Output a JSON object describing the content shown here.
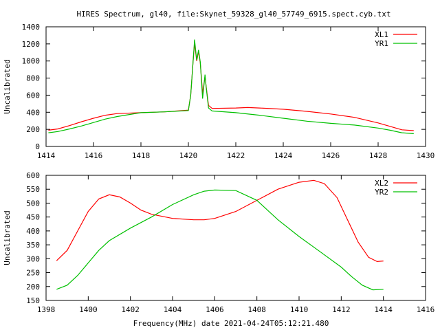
{
  "chart_data": [
    {
      "type": "line",
      "title": "HIRES Spectrum, gl40, file:Skynet_59328_gl40_57749_6915.spect.cyb.txt",
      "xlabel": "",
      "ylabel": "Uncalibrated",
      "xlim": [
        1414,
        1430
      ],
      "ylim": [
        0,
        1400
      ],
      "xticks": [
        1414,
        1416,
        1418,
        1420,
        1422,
        1424,
        1426,
        1428,
        1430
      ],
      "yticks": [
        0,
        200,
        400,
        600,
        800,
        1000,
        1200,
        1400
      ],
      "legend": "top-right",
      "series": [
        {
          "name": "XL1",
          "color": "#ff0000",
          "x": [
            1414.1,
            1414.5,
            1415,
            1415.5,
            1416,
            1416.5,
            1417,
            1418,
            1419,
            1420,
            1420.1,
            1420.2,
            1420.26,
            1420.35,
            1420.43,
            1420.5,
            1420.6,
            1420.7,
            1420.75,
            1420.85,
            1421,
            1422,
            1422.5,
            1423,
            1424,
            1425,
            1426,
            1427,
            1428,
            1428.5,
            1429,
            1429.5
          ],
          "y": [
            190,
            205,
            245,
            290,
            330,
            365,
            385,
            395,
            405,
            425,
            600,
            1000,
            1210,
            1000,
            1110,
            980,
            620,
            820,
            700,
            480,
            445,
            450,
            455,
            450,
            435,
            410,
            380,
            340,
            275,
            235,
            195,
            185
          ]
        },
        {
          "name": "YR1",
          "color": "#00c000",
          "x": [
            1414.1,
            1414.5,
            1415,
            1415.5,
            1416,
            1416.5,
            1417,
            1418,
            1419,
            1420,
            1420.1,
            1420.2,
            1420.26,
            1420.35,
            1420.43,
            1420.5,
            1420.6,
            1420.7,
            1420.75,
            1420.85,
            1421,
            1422,
            1423,
            1424,
            1425,
            1426,
            1427,
            1428,
            1428.5,
            1429,
            1429.5
          ],
          "y": [
            160,
            175,
            205,
            240,
            280,
            320,
            350,
            395,
            405,
            420,
            600,
            1000,
            1250,
            1010,
            1130,
            990,
            560,
            840,
            690,
            450,
            415,
            395,
            365,
            330,
            295,
            270,
            250,
            215,
            190,
            160,
            150
          ]
        }
      ]
    },
    {
      "type": "line",
      "title": "",
      "xlabel": "Frequency(MHz) date 2021-04-24T05:12:21.480",
      "ylabel": "Uncalibrated",
      "xlim": [
        1398,
        1416
      ],
      "ylim": [
        150,
        600
      ],
      "xticks": [
        1398,
        1400,
        1402,
        1404,
        1406,
        1408,
        1410,
        1412,
        1414,
        1416
      ],
      "yticks": [
        150,
        200,
        250,
        300,
        350,
        400,
        450,
        500,
        550,
        600
      ],
      "legend": "top-right",
      "series": [
        {
          "name": "XL2",
          "color": "#ff0000",
          "x": [
            1398.5,
            1399,
            1399.5,
            1400,
            1400.5,
            1401,
            1401.5,
            1402,
            1402.5,
            1403,
            1404,
            1405,
            1405.5,
            1406,
            1407,
            1408,
            1409,
            1410,
            1410.7,
            1411.2,
            1411.8,
            1412.3,
            1412.8,
            1413.3,
            1413.7,
            1414
          ],
          "y": [
            293,
            330,
            400,
            470,
            515,
            530,
            522,
            500,
            475,
            460,
            445,
            440,
            440,
            445,
            470,
            510,
            550,
            575,
            582,
            570,
            520,
            440,
            360,
            305,
            290,
            292
          ]
        },
        {
          "name": "YR2",
          "color": "#00c000",
          "x": [
            1398.5,
            1399,
            1399.5,
            1400,
            1400.5,
            1401,
            1402,
            1403,
            1404,
            1405,
            1405.5,
            1406,
            1407,
            1408,
            1409,
            1410,
            1411,
            1412,
            1412.5,
            1413,
            1413.5,
            1414
          ],
          "y": [
            190,
            205,
            240,
            285,
            330,
            365,
            410,
            450,
            495,
            530,
            543,
            547,
            545,
            510,
            440,
            380,
            325,
            270,
            235,
            205,
            188,
            190
          ]
        }
      ]
    }
  ]
}
